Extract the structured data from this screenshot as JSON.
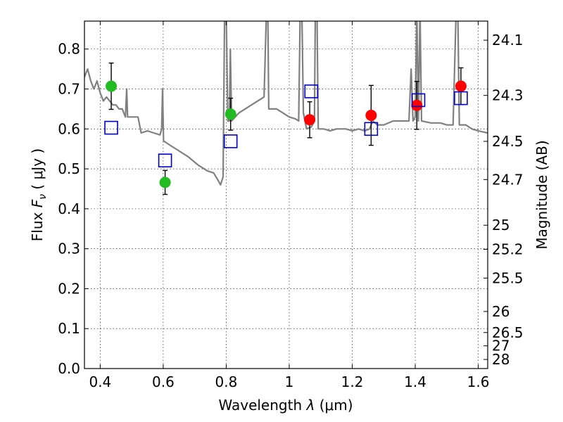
{
  "chart_data": {
    "type": "scatter",
    "xlabel_text": "Wavelength",
    "xlabel_symbol": "λ",
    "xlabel_unit": "(μm)",
    "ylabel_text": "Flux",
    "ylabel_symbol": "F",
    "ylabel_subscript": "ν",
    "ylabel_unit": "( μJy )",
    "y2label": "Magnitude (AB)",
    "xlim": [
      0.35,
      1.63
    ],
    "ylim": [
      0.0,
      0.87
    ],
    "grid": true,
    "x_ticks": [
      0.4,
      0.6,
      0.8,
      1.0,
      1.2,
      1.4,
      1.6
    ],
    "x_tick_labels": [
      "0.4",
      "0.6",
      "0.8",
      "1",
      "1.2",
      "1.4",
      "1.6"
    ],
    "y_ticks": [
      0.0,
      0.1,
      0.2,
      0.3,
      0.4,
      0.5,
      0.6,
      0.7,
      0.8
    ],
    "y_tick_labels": [
      "0.0",
      "0.1",
      "0.2",
      "0.3",
      "0.4",
      "0.5",
      "0.6",
      "0.7",
      "0.8"
    ],
    "y2_ticks": [
      {
        "label": "24.1",
        "flux": 0.8222
      },
      {
        "label": "24.3",
        "flux": 0.6839
      },
      {
        "label": "24.5",
        "flux": 0.5689
      },
      {
        "label": "24.7",
        "flux": 0.4732
      },
      {
        "label": "25",
        "flux": 0.3589
      },
      {
        "label": "25.2",
        "flux": 0.2985
      },
      {
        "label": "25.5",
        "flux": 0.2265
      },
      {
        "label": "26",
        "flux": 0.1429
      },
      {
        "label": "26.5",
        "flux": 0.0902
      },
      {
        "label": "27",
        "flux": 0.0569
      },
      {
        "label": "28",
        "flux": 0.0227
      }
    ],
    "colors": {
      "green": "#22bb22",
      "red": "#ff0000",
      "model": "#0000cc",
      "spectrum": "#808080",
      "errorbar": "#000000"
    },
    "series": [
      {
        "marker": "circle",
        "color": "#22bb22",
        "points": [
          {
            "x": 0.435,
            "y": 0.707,
            "yerr": 0.058
          },
          {
            "x": 0.606,
            "y": 0.466,
            "yerr": 0.03
          },
          {
            "x": 0.814,
            "y": 0.637,
            "yerr": 0.04
          }
        ]
      },
      {
        "marker": "circle",
        "color": "#ff0000",
        "points": [
          {
            "x": 1.065,
            "y": 0.623,
            "yerr": 0.045
          },
          {
            "x": 1.26,
            "y": 0.634,
            "yerr": 0.075
          },
          {
            "x": 1.405,
            "y": 0.659,
            "yerr": 0.06
          },
          {
            "x": 1.545,
            "y": 0.707,
            "yerr": 0.046
          }
        ]
      },
      {
        "marker": "open-square",
        "color": "#0000cc",
        "points": [
          {
            "x": 0.435,
            "y": 0.603
          },
          {
            "x": 0.606,
            "y": 0.521
          },
          {
            "x": 0.814,
            "y": 0.569
          },
          {
            "x": 1.07,
            "y": 0.694
          },
          {
            "x": 1.26,
            "y": 0.6
          },
          {
            "x": 1.41,
            "y": 0.672
          },
          {
            "x": 1.545,
            "y": 0.677
          }
        ]
      }
    ],
    "spectrum": [
      [
        0.35,
        0.73
      ],
      [
        0.36,
        0.75
      ],
      [
        0.37,
        0.72
      ],
      [
        0.38,
        0.7
      ],
      [
        0.39,
        0.72
      ],
      [
        0.4,
        0.69
      ],
      [
        0.41,
        0.67
      ],
      [
        0.42,
        0.68
      ],
      [
        0.43,
        0.67
      ],
      [
        0.44,
        0.66
      ],
      [
        0.45,
        0.66
      ],
      [
        0.46,
        0.65
      ],
      [
        0.47,
        0.65
      ],
      [
        0.48,
        0.63
      ],
      [
        0.484,
        0.7
      ],
      [
        0.487,
        0.63
      ],
      [
        0.5,
        0.63
      ],
      [
        0.52,
        0.63
      ],
      [
        0.53,
        0.59
      ],
      [
        0.55,
        0.595
      ],
      [
        0.57,
        0.59
      ],
      [
        0.59,
        0.585
      ],
      [
        0.595,
        0.6
      ],
      [
        0.598,
        0.7
      ],
      [
        0.601,
        0.57
      ],
      [
        0.62,
        0.56
      ],
      [
        0.65,
        0.545
      ],
      [
        0.68,
        0.53
      ],
      [
        0.71,
        0.51
      ],
      [
        0.74,
        0.495
      ],
      [
        0.76,
        0.49
      ],
      [
        0.775,
        0.47
      ],
      [
        0.782,
        0.46
      ],
      [
        0.79,
        0.48
      ],
      [
        0.795,
        0.9
      ],
      [
        0.8,
        0.9
      ],
      [
        0.805,
        0.62
      ],
      [
        0.81,
        0.62
      ],
      [
        0.813,
        0.8
      ],
      [
        0.817,
        0.62
      ],
      [
        0.84,
        0.64
      ],
      [
        0.86,
        0.65
      ],
      [
        0.88,
        0.66
      ],
      [
        0.9,
        0.67
      ],
      [
        0.92,
        0.68
      ],
      [
        0.928,
        0.9
      ],
      [
        0.932,
        0.9
      ],
      [
        0.935,
        0.65
      ],
      [
        0.96,
        0.65
      ],
      [
        0.98,
        0.64
      ],
      [
        1.0,
        0.63
      ],
      [
        1.02,
        0.625
      ],
      [
        1.03,
        0.62
      ],
      [
        1.035,
        0.9
      ],
      [
        1.04,
        0.9
      ],
      [
        1.045,
        0.64
      ],
      [
        1.055,
        0.6
      ],
      [
        1.07,
        0.605
      ],
      [
        1.08,
        0.62
      ],
      [
        1.083,
        0.9
      ],
      [
        1.088,
        0.9
      ],
      [
        1.092,
        0.6
      ],
      [
        1.11,
        0.6
      ],
      [
        1.13,
        0.595
      ],
      [
        1.15,
        0.6
      ],
      [
        1.18,
        0.6
      ],
      [
        1.2,
        0.595
      ],
      [
        1.22,
        0.6
      ],
      [
        1.24,
        0.595
      ],
      [
        1.255,
        0.6
      ],
      [
        1.265,
        0.62
      ],
      [
        1.28,
        0.61
      ],
      [
        1.3,
        0.61
      ],
      [
        1.33,
        0.62
      ],
      [
        1.36,
        0.62
      ],
      [
        1.38,
        0.62
      ],
      [
        1.387,
        0.75
      ],
      [
        1.393,
        0.62
      ],
      [
        1.4,
        0.63
      ],
      [
        1.405,
        0.9
      ],
      [
        1.41,
        0.62
      ],
      [
        1.415,
        0.9
      ],
      [
        1.42,
        0.62
      ],
      [
        1.45,
        0.615
      ],
      [
        1.48,
        0.615
      ],
      [
        1.5,
        0.61
      ],
      [
        1.52,
        0.61
      ],
      [
        1.53,
        0.9
      ],
      [
        1.535,
        0.9
      ],
      [
        1.54,
        0.61
      ],
      [
        1.56,
        0.61
      ],
      [
        1.58,
        0.6
      ],
      [
        1.6,
        0.595
      ],
      [
        1.63,
        0.59
      ]
    ]
  }
}
